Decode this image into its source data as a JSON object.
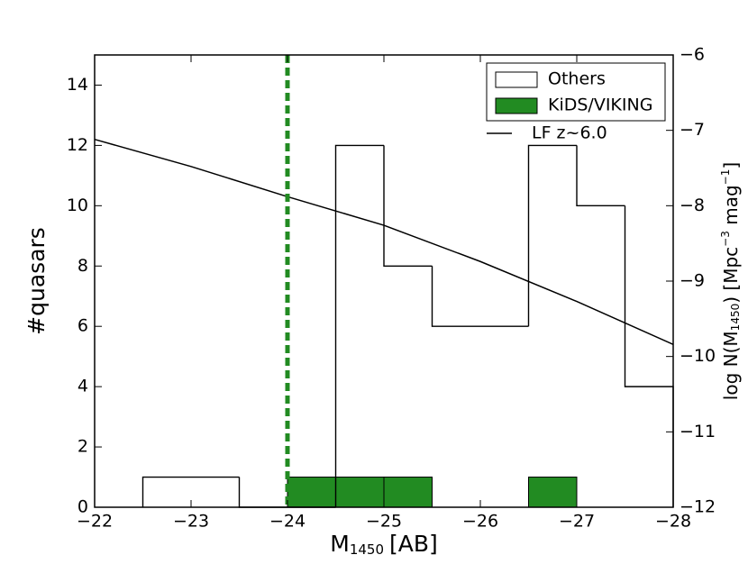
{
  "chart_data": {
    "type": "histogram",
    "bins": [
      -22.5,
      -23,
      -23.5,
      -24,
      -24.5,
      -25,
      -25.5,
      -26,
      -26.5,
      -27,
      -27.5,
      -28
    ],
    "series": [
      {
        "name": "KiDS/VIKING",
        "color": "#228b22",
        "values": [
          0,
          0,
          0,
          1,
          1,
          1,
          0,
          0,
          1,
          0,
          0
        ]
      },
      {
        "name": "Others",
        "color": "#ffffff",
        "values": [
          1,
          1,
          0,
          0,
          12,
          8,
          6,
          6,
          12,
          10,
          4
        ]
      }
    ],
    "lines": [
      {
        "name": "LF z~6.0",
        "color": "#000000",
        "axis": "y2",
        "x": [
          -22,
          -23,
          -24,
          -25,
          -26,
          -27,
          -28
        ],
        "values": [
          -7.12,
          -7.48,
          -7.88,
          -8.26,
          -8.74,
          -9.27,
          -9.84
        ]
      }
    ],
    "vline": {
      "x": -24,
      "color": "#228b22"
    },
    "xlim": [
      -22,
      -28
    ],
    "xticks": [
      {
        "value": -22,
        "label": "−22"
      },
      {
        "value": -23,
        "label": "−23"
      },
      {
        "value": -24,
        "label": "−24"
      },
      {
        "value": -25,
        "label": "−25"
      },
      {
        "value": -26,
        "label": "−26"
      },
      {
        "value": -27,
        "label": "−27"
      },
      {
        "value": -28,
        "label": "−28"
      }
    ],
    "ylim": [
      0,
      15
    ],
    "yticks": [
      0,
      2,
      4,
      6,
      8,
      10,
      12,
      14
    ],
    "y2lim": [
      -12,
      -6
    ],
    "y2ticks": [
      {
        "value": -6,
        "label": "−6"
      },
      {
        "value": -7,
        "label": "−7"
      },
      {
        "value": -8,
        "label": "−8"
      },
      {
        "value": -9,
        "label": "−9"
      },
      {
        "value": -10,
        "label": "−10"
      },
      {
        "value": -11,
        "label": "−11"
      },
      {
        "value": -12,
        "label": "−12"
      }
    ],
    "ylabel": "#quasars",
    "xlabel": {
      "main": "M",
      "sub": "1450",
      "unit": "[AB]"
    },
    "y2label": {
      "a": "log N(M",
      "b": "1450",
      "c": ") [Mpc",
      "d": "−3",
      "e": " mag",
      "f": "−1",
      "g": "]"
    },
    "legend": "upper right"
  }
}
